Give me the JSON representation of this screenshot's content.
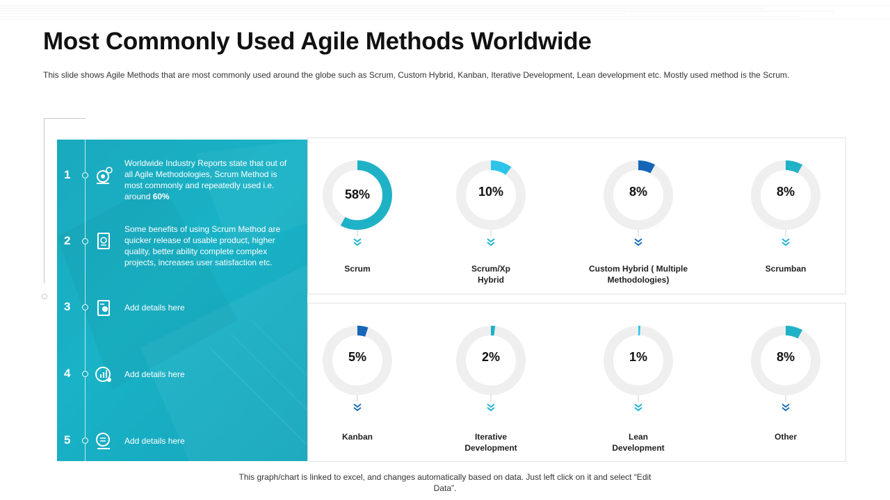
{
  "page": {
    "title": "Most Commonly Used Agile Methods Worldwide",
    "subtitle": "This slide shows Agile Methods that are most commonly used around the globe such as Scrum, Custom Hybrid, Kanban, Iterative Development, Lean development  etc. Mostly used method is the Scrum.",
    "footer": "This graph/chart is linked to excel, and changes automatically based on data. Just left click on it and select “Edit Data”."
  },
  "steps": [
    {
      "number": "1",
      "icon": "target-gear-icon",
      "text_parts": [
        "Worldwide Industry Reports state that out of all Agile Methodologies, Scrum Method is most commonly and repeatedly used i.e. around ",
        "60%"
      ]
    },
    {
      "number": "2",
      "icon": "document-badge-icon",
      "text_parts": [
        "Some benefits of using Scrum Method are quicker release of usable product, higher quality, better ability complete complex projects, increases user satisfaction etc.",
        ""
      ]
    },
    {
      "number": "3",
      "icon": "clipboard-gear-icon",
      "text_parts": [
        "Add details here",
        ""
      ]
    },
    {
      "number": "4",
      "icon": "chart-gear-icon",
      "text_parts": [
        "Add details here",
        ""
      ]
    },
    {
      "number": "5",
      "icon": "report-gear-icon",
      "text_parts": [
        "Add details here",
        ""
      ]
    }
  ],
  "colors": {
    "panel": "#19aec2",
    "track": "#efefef",
    "teal": "#1fb2c6",
    "light_blue": "#2ec4ea",
    "dark_blue": "#1565b8",
    "arrow_teal": "#20b4d6",
    "arrow_blue": "#1a6fbd"
  },
  "chart_data": {
    "type": "pie",
    "subtype": "donut",
    "categories": [
      "Scrum",
      "Scrum/Xp Hybrid",
      "Custom Hybrid ( Multiple Methodologies)",
      "Scrumban",
      "Kanban",
      "Iterative Development",
      "Lean Development",
      "Other"
    ],
    "values": [
      58,
      10,
      8,
      8,
      5,
      2,
      1,
      8
    ],
    "value_labels": [
      "58%",
      "10%",
      "8%",
      "8%",
      "5%",
      "2%",
      "1%",
      "8%"
    ],
    "label_lines": [
      [
        "Scrum"
      ],
      [
        "Scrum/Xp",
        "Hybrid"
      ],
      [
        "Custom Hybrid ( Multiple",
        "Methodologies)"
      ],
      [
        "Scrumban"
      ],
      [
        "Kanban"
      ],
      [
        "Iterative",
        "Development"
      ],
      [
        "Lean",
        "Development"
      ],
      [
        "Other"
      ]
    ],
    "arc_colors": [
      "#1fb2c6",
      "#2ec4ea",
      "#1565b8",
      "#1fb2c6",
      "#1565b8",
      "#1fb2c6",
      "#2ec4ea",
      "#1fb2c6"
    ],
    "arrow_colors": [
      "#20b4d6",
      "#20b4d6",
      "#1a6fbd",
      "#20b4d6",
      "#1a6fbd",
      "#20b4d6",
      "#20b4d6",
      "#1a6fbd"
    ],
    "unit": "%"
  }
}
